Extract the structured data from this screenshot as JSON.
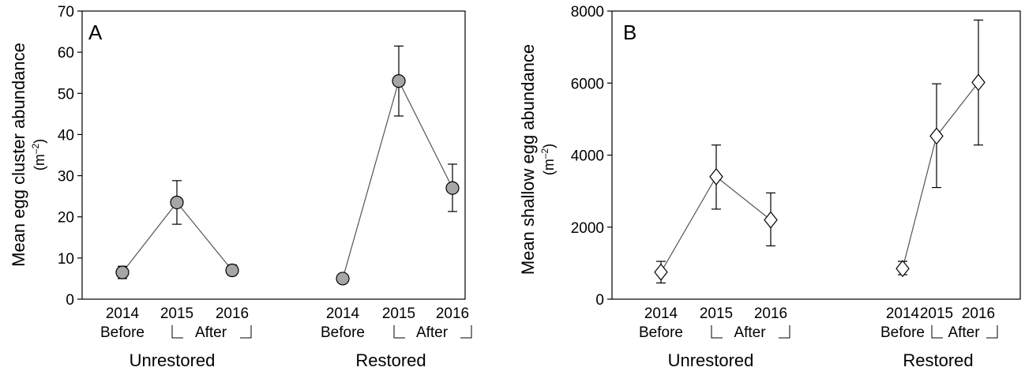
{
  "chart_data": [
    {
      "type": "line",
      "panel_label": "A",
      "ylabel_line1": "Mean egg cluster abundance",
      "ylabel_line2": "(m",
      "ylabel_sup": "–2",
      "ylabel_close": ")",
      "ylim": [
        0,
        70
      ],
      "yticks": [
        "0",
        "10",
        "20",
        "30",
        "40",
        "50",
        "60",
        "70"
      ],
      "marker": "circle",
      "marker_fill": "#a6a6a6",
      "groups": [
        {
          "name": "Unrestored",
          "years": [
            "2014",
            "2015",
            "2016"
          ],
          "period_before": "Before",
          "period_after": "After",
          "values": [
            6.5,
            23.5,
            7
          ],
          "err_low": [
            5,
            18.2,
            5.8
          ],
          "err_high": [
            8,
            28.8,
            8.3
          ]
        },
        {
          "name": "Restored",
          "years": [
            "2014",
            "2015",
            "2016"
          ],
          "period_before": "Before",
          "period_after": "After",
          "values": [
            5,
            53,
            27
          ],
          "err_low": [
            4,
            44.5,
            21.3
          ],
          "err_high": [
            5.8,
            61.5,
            32.8
          ]
        }
      ]
    },
    {
      "type": "line",
      "panel_label": "B",
      "ylabel_line1": "Mean shallow egg abundance",
      "ylabel_line2": "(m",
      "ylabel_sup": "–2",
      "ylabel_close": ")",
      "ylim": [
        0,
        8000
      ],
      "yticks": [
        "0",
        "2000",
        "4000",
        "6000",
        "8000"
      ],
      "marker": "diamond",
      "marker_fill": "#ffffff",
      "groups": [
        {
          "name": "Unrestored",
          "years": [
            "2014",
            "2015",
            "2016"
          ],
          "period_before": "Before",
          "period_after": "After",
          "values": [
            750,
            3400,
            2200
          ],
          "err_low": [
            450,
            2500,
            1480
          ],
          "err_high": [
            1050,
            4280,
            2950
          ]
        },
        {
          "name": "Restored",
          "years": [
            "2014",
            "2015",
            "2016"
          ],
          "period_before": "Before",
          "period_after": "After",
          "values": [
            850,
            4530,
            6020
          ],
          "err_low": [
            680,
            3100,
            4280
          ],
          "err_high": [
            1050,
            5980,
            7750
          ]
        }
      ]
    }
  ]
}
